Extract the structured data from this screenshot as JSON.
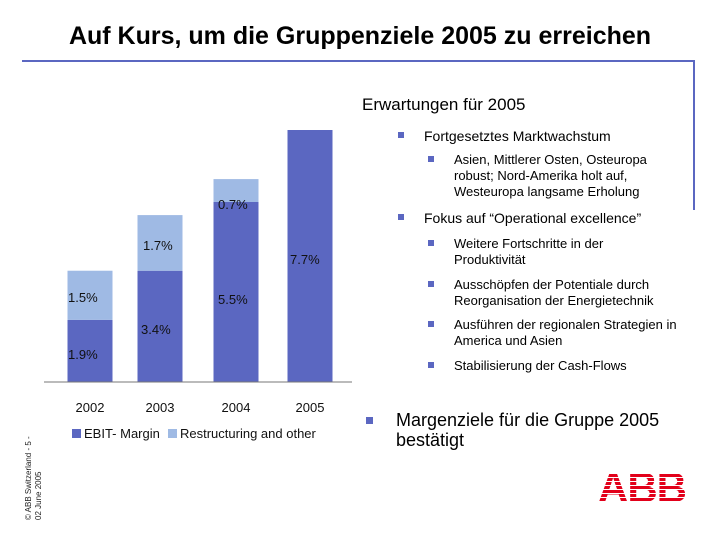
{
  "title": "Auf Kurs, um die Gruppenziele 2005 zu erreichen",
  "side_text": {
    "line1": "© ABB Switzerland - 5 -",
    "line2": "02 June 2005"
  },
  "chart_data": {
    "type": "bar",
    "stacked": true,
    "categories": [
      "2002",
      "2003",
      "2004",
      "2005"
    ],
    "series": [
      {
        "name": "EBIT- Margin",
        "values": [
          1.9,
          3.4,
          5.5,
          7.7
        ],
        "labels": [
          "1.9%",
          "3.4%",
          "5.5%",
          "7.7%"
        ],
        "color": "#5b67c1"
      },
      {
        "name": "Restructuring and other",
        "values": [
          1.5,
          1.7,
          0.7,
          0
        ],
        "labels": [
          "1.5%",
          "1.7%",
          "0.7%",
          ""
        ],
        "color": "#9fbae4"
      }
    ],
    "ylim": [
      0,
      7.7
    ],
    "legend_position": "bottom"
  },
  "expectations": {
    "title": "Erwartungen für 2005",
    "bullets": [
      {
        "text": "Fortgesetztes Marktwachstum",
        "level": 1
      },
      {
        "text": "Asien, Mittlerer Osten, Osteuropa robust; Nord-Amerika holt auf, Westeuropa langsame Erholung",
        "level": 2
      },
      {
        "text": "Fokus auf “Operational excellence”",
        "level": 1
      },
      {
        "text": "Weitere Fortschritte in der Produktivität",
        "level": 2
      },
      {
        "text": "Ausschöpfen der Potentiale durch Reorganisation der Energietechnik",
        "level": 2
      },
      {
        "text": "Ausführen der regionalen Strategien in America und Asien",
        "level": 2
      },
      {
        "text": "Stabilisierung der Cash-Flows",
        "level": 2
      }
    ],
    "conclusion": "Margenziele für die Gruppe 2005 bestätigt"
  },
  "logo": {
    "text": "ABB",
    "color": "#e2001a"
  },
  "colors": {
    "accent": "#5b67c1",
    "restructuring": "#9fbae4",
    "brand": "#e2001a"
  }
}
